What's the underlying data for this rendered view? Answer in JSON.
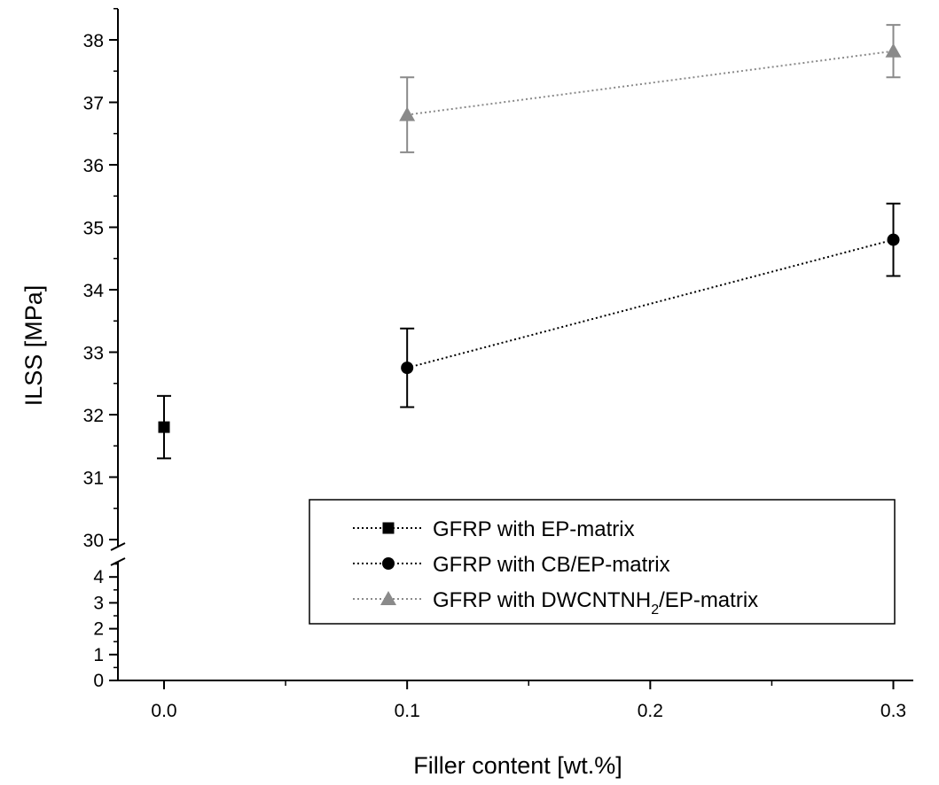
{
  "chart_data": {
    "type": "scatter",
    "xlabel": "Filler content [wt.%]",
    "ylabel": "ILSS [MPa]",
    "xlim": [
      -0.025,
      0.33
    ],
    "x_ticks": [
      "0.0",
      "0.1",
      "0.2",
      "0.3"
    ],
    "y_axis_broken": true,
    "y_lower_segment": {
      "range": [
        0,
        4.7
      ],
      "ticks": [
        "0",
        "1",
        "2",
        "3",
        "4"
      ]
    },
    "y_upper_segment": {
      "range": [
        30,
        38.5
      ],
      "ticks": [
        "30",
        "31",
        "32",
        "33",
        "34",
        "35",
        "36",
        "37",
        "38"
      ]
    },
    "grid": false,
    "legend_position": "bottom-right",
    "series": [
      {
        "name": "GFRP with EP-matrix",
        "marker": "square",
        "color": "#000000",
        "x": [
          0.0
        ],
        "y": [
          31.8
        ],
        "y_err": [
          0.5
        ]
      },
      {
        "name": "GFRP with CB/EP-matrix",
        "marker": "circle",
        "color": "#000000",
        "x": [
          0.1,
          0.3
        ],
        "y": [
          32.75,
          34.8
        ],
        "y_err": [
          0.63,
          0.58
        ]
      },
      {
        "name": "GFRP with DWCNTNH2/EP-matrix",
        "name_parts": {
          "main": "GFRP with DWCNTNH",
          "sub": "2",
          "rest": "/EP-matrix"
        },
        "marker": "triangle",
        "color": "#8a8a8a",
        "x": [
          0.1,
          0.3
        ],
        "y": [
          36.8,
          37.82
        ],
        "y_err": [
          0.6,
          0.42
        ]
      }
    ]
  }
}
